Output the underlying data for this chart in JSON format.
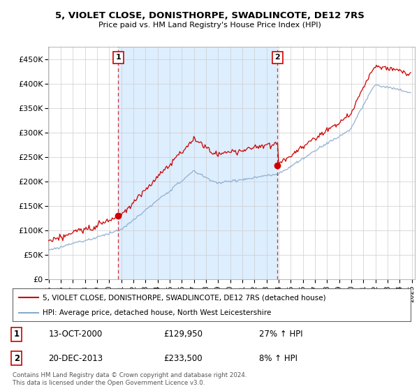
{
  "title": "5, VIOLET CLOSE, DONISTHORPE, SWADLINCOTE, DE12 7RS",
  "subtitle": "Price paid vs. HM Land Registry's House Price Index (HPI)",
  "legend_line1": "5, VIOLET CLOSE, DONISTHORPE, SWADLINCOTE, DE12 7RS (detached house)",
  "legend_line2": "HPI: Average price, detached house, North West Leicestershire",
  "transaction1_date": "13-OCT-2000",
  "transaction1_price": "£129,950",
  "transaction1_hpi": "27% ↑ HPI",
  "transaction2_date": "20-DEC-2013",
  "transaction2_price": "£233,500",
  "transaction2_hpi": "8% ↑ HPI",
  "footer": "Contains HM Land Registry data © Crown copyright and database right 2024.\nThis data is licensed under the Open Government Licence v3.0.",
  "property_color": "#cc0000",
  "hpi_color": "#88aacc",
  "hpi_color_light": "#aabbdd",
  "vline_color": "#cc0000",
  "shade_color": "#ddeeff",
  "background_color": "#ffffff",
  "ylim_max": 475000,
  "t1_year": 2000,
  "t1_month": 10,
  "t1_price": 129950,
  "t2_year": 2013,
  "t2_month": 12,
  "t2_price": 233500
}
